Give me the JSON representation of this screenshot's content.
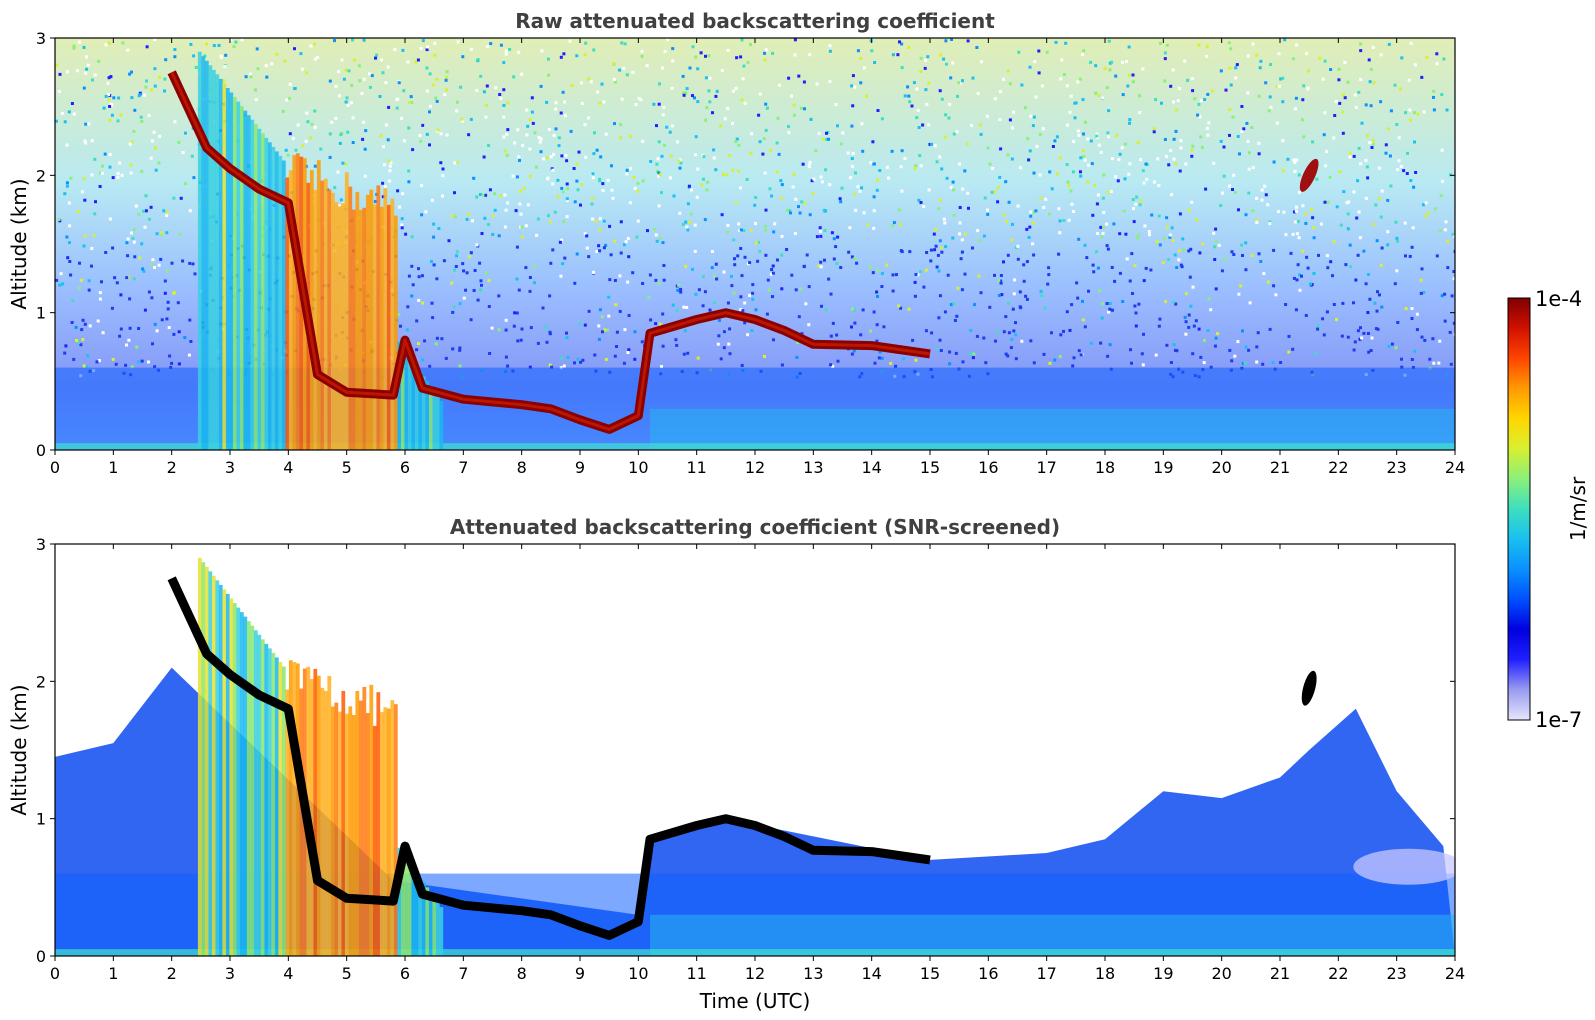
{
  "chart_data": [
    {
      "type": "heatmap",
      "title": "Raw attenuated backscattering coefficient",
      "xlabel": "",
      "ylabel": "Altitude (km)",
      "xlim": [
        0,
        24
      ],
      "ylim": [
        0,
        3
      ],
      "xticks": [
        "0",
        "1",
        "2",
        "3",
        "4",
        "5",
        "6",
        "7",
        "8",
        "9",
        "10",
        "11",
        "12",
        "13",
        "14",
        "15",
        "16",
        "17",
        "18",
        "19",
        "20",
        "21",
        "22",
        "23",
        "24"
      ],
      "yticks": [
        "0",
        "1",
        "2",
        "3"
      ],
      "cloud_layer": [
        {
          "time": 2.0,
          "altitude": 2.75
        },
        {
          "time": 2.6,
          "altitude": 2.2
        },
        {
          "time": 3.0,
          "altitude": 2.05
        },
        {
          "time": 3.5,
          "altitude": 1.9
        },
        {
          "time": 4.0,
          "altitude": 1.8
        },
        {
          "time": 4.5,
          "altitude": 0.55
        },
        {
          "time": 5.0,
          "altitude": 0.42
        },
        {
          "time": 5.8,
          "altitude": 0.4
        },
        {
          "time": 6.0,
          "altitude": 0.8
        },
        {
          "time": 6.3,
          "altitude": 0.45
        },
        {
          "time": 7.0,
          "altitude": 0.37
        },
        {
          "time": 8.0,
          "altitude": 0.33
        },
        {
          "time": 8.5,
          "altitude": 0.3
        },
        {
          "time": 9.0,
          "altitude": 0.22
        },
        {
          "time": 9.5,
          "altitude": 0.15
        },
        {
          "time": 10.0,
          "altitude": 0.25
        },
        {
          "time": 10.2,
          "altitude": 0.85
        },
        {
          "time": 11.0,
          "altitude": 0.95
        },
        {
          "time": 11.5,
          "altitude": 1.0
        },
        {
          "time": 12.0,
          "altitude": 0.95
        },
        {
          "time": 12.5,
          "altitude": 0.87
        },
        {
          "time": 13.0,
          "altitude": 0.77
        },
        {
          "time": 14.0,
          "altitude": 0.76
        },
        {
          "time": 15.0,
          "altitude": 0.7
        }
      ]
    },
    {
      "type": "heatmap",
      "title": "Attenuated backscattering coefficient (SNR-screened)",
      "xlabel": "Time (UTC)",
      "ylabel": "Altitude (km)",
      "xlim": [
        0,
        24
      ],
      "ylim": [
        0,
        3
      ],
      "xticks": [
        "0",
        "1",
        "2",
        "3",
        "4",
        "5",
        "6",
        "7",
        "8",
        "9",
        "10",
        "11",
        "12",
        "13",
        "14",
        "15",
        "16",
        "17",
        "18",
        "19",
        "20",
        "21",
        "22",
        "23",
        "24"
      ],
      "yticks": [
        "0",
        "1",
        "2",
        "3"
      ],
      "signal_top": [
        {
          "time": 0.0,
          "altitude": 1.45
        },
        {
          "time": 1.0,
          "altitude": 1.55
        },
        {
          "time": 2.0,
          "altitude": 2.1
        },
        {
          "time": 5.8,
          "altitude": 0.55
        },
        {
          "time": 10.0,
          "altitude": 0.3
        },
        {
          "time": 10.2,
          "altitude": 0.85
        },
        {
          "time": 11.5,
          "altitude": 1.0
        },
        {
          "time": 15.0,
          "altitude": 0.7
        },
        {
          "time": 17.0,
          "altitude": 0.75
        },
        {
          "time": 18.0,
          "altitude": 0.85
        },
        {
          "time": 19.0,
          "altitude": 1.2
        },
        {
          "time": 20.0,
          "altitude": 1.15
        },
        {
          "time": 21.0,
          "altitude": 1.3
        },
        {
          "time": 21.5,
          "altitude": 1.5
        },
        {
          "time": 22.3,
          "altitude": 1.8
        },
        {
          "time": 23.0,
          "altitude": 1.2
        },
        {
          "time": 23.8,
          "altitude": 0.8
        }
      ]
    }
  ],
  "colorbar": {
    "max_label": "1e-4",
    "min_label": "1e-7",
    "unit_label": "1/m/sr",
    "colors": [
      "#e6e6fa",
      "#9a9cf0",
      "#2020ff",
      "#0000e0",
      "#0050ff",
      "#0a90ff",
      "#19c0f0",
      "#3ddfc0",
      "#8af07a",
      "#d8f030",
      "#ffd700",
      "#ff9a00",
      "#ff4500",
      "#d01000",
      "#800000"
    ]
  }
}
